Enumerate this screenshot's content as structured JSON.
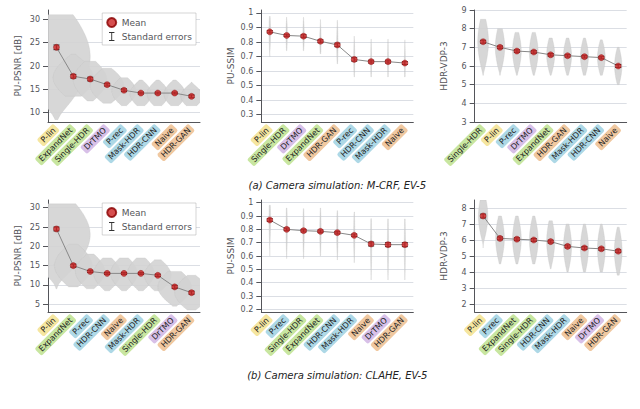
{
  "chart_data": [
    {
      "type": "violin",
      "ylabel": "PU-PSNR [dB]",
      "categories": [
        "P-lin",
        "ExpandNet",
        "Single-HDR",
        "DrTMO",
        "P-rec",
        "Mask-HDR",
        "HDR-CNN",
        "Naive",
        "HDR-GAN"
      ],
      "colors": [
        "#f5e6a0",
        "#c8e6a0",
        "#c8e6a0",
        "#d8c0e8",
        "#add8e6",
        "#add8e6",
        "#add8e6",
        "#f0c8a0",
        "#f0c8a0"
      ],
      "ylim": [
        8,
        32
      ],
      "yticks": [
        10,
        15,
        20,
        25,
        30
      ],
      "grid": true,
      "legend": "upper right",
      "series": [
        {
          "name": "Mean",
          "errors_name": "Standard errors",
          "color": "#cc2222",
          "values": [
            24.0,
            17.8,
            17.2,
            16.0,
            14.8,
            14.2,
            14.2,
            14.2,
            13.5
          ],
          "errors": [
            0.5,
            0.4,
            0.4,
            0.3,
            0.3,
            0.2,
            0.2,
            0.2,
            0.3
          ]
        }
      ],
      "violins": {
        "color": "#d3d3d3",
        "centers": [
          22.0,
          17.5,
          17.0,
          15.8,
          14.6,
          14.0,
          14.0,
          14.0,
          13.5
        ],
        "widths": [
          5.0,
          3.0,
          2.5,
          2.5,
          1.8,
          1.6,
          1.6,
          1.6,
          1.6
        ],
        "mins": [
          8.5,
          13.5,
          12.5,
          12.0,
          11.5,
          11.5,
          11.5,
          11.5,
          11.5
        ],
        "maxs": [
          31.0,
          22.5,
          21.0,
          19.5,
          17.5,
          17.0,
          17.0,
          17.0,
          16.5
        ]
      }
    },
    {
      "type": "violin",
      "ylabel": "PU-SSIM",
      "categories": [
        "P-lin",
        "Single-HDR",
        "DrTMO",
        "ExpandNet",
        "HDR-GAN",
        "P-rec",
        "HDR-CNN",
        "Mask-HDR",
        "Naive"
      ],
      "colors": [
        "#f5e6a0",
        "#c8e6a0",
        "#d8c0e8",
        "#c8e6a0",
        "#f0c8a0",
        "#add8e6",
        "#add8e6",
        "#add8e6",
        "#f0c8a0"
      ],
      "ylim": [
        0.25,
        1.02
      ],
      "yticks": [
        0.3,
        0.4,
        0.5,
        0.6,
        0.7,
        0.8,
        0.9,
        1.0
      ],
      "grid": true,
      "annotations": [
        "(a) Camera simulation: M-CRF, EV-5"
      ],
      "series": [
        {
          "color": "#cc2222",
          "values": [
            0.87,
            0.845,
            0.84,
            0.805,
            0.78,
            0.68,
            0.665,
            0.665,
            0.655
          ],
          "errors": [
            0.008,
            0.008,
            0.01,
            0.01,
            0.012,
            0.012,
            0.01,
            0.01,
            0.01
          ]
        }
      ],
      "violins": {
        "color": "#d3d3d3",
        "centers": [
          0.87,
          0.85,
          0.845,
          0.81,
          0.785,
          0.685,
          0.67,
          0.67,
          0.66
        ],
        "widths": [
          0.12,
          0.1,
          0.1,
          0.1,
          0.1,
          0.08,
          0.07,
          0.07,
          0.07
        ],
        "mins": [
          0.7,
          0.74,
          0.74,
          0.72,
          0.65,
          0.56,
          0.56,
          0.56,
          0.56
        ],
        "maxs": [
          0.975,
          0.97,
          0.97,
          0.955,
          0.95,
          0.84,
          0.82,
          0.82,
          0.815
        ]
      }
    },
    {
      "type": "violin",
      "ylabel": "HDR-VDP-3",
      "categories": [
        "Single-HDR",
        "P-lin",
        "P-rec",
        "DrTMO",
        "ExpandNet",
        "HDR-GAN",
        "Mask-HDR",
        "HDR-CNN",
        "Naive"
      ],
      "colors": [
        "#c8e6a0",
        "#f5e6a0",
        "#add8e6",
        "#d8c0e8",
        "#c8e6a0",
        "#f0c8a0",
        "#add8e6",
        "#add8e6",
        "#f0c8a0"
      ],
      "ylim": [
        3,
        9
      ],
      "yticks": [
        3,
        4,
        5,
        6,
        7,
        8,
        9
      ],
      "grid": true,
      "series": [
        {
          "color": "#cc2222",
          "values": [
            7.3,
            7.0,
            6.8,
            6.75,
            6.6,
            6.55,
            6.5,
            6.45,
            6.0
          ],
          "errors": [
            0.08,
            0.07,
            0.07,
            0.07,
            0.07,
            0.07,
            0.07,
            0.07,
            0.08
          ]
        }
      ],
      "violins": {
        "color": "#d3d3d3",
        "centers": [
          7.3,
          7.0,
          6.8,
          6.75,
          6.6,
          6.55,
          6.5,
          6.45,
          6.0
        ],
        "widths": [
          0.8,
          0.7,
          0.65,
          0.65,
          0.6,
          0.6,
          0.6,
          0.58,
          0.55
        ],
        "mins": [
          5.5,
          5.5,
          5.5,
          5.5,
          5.5,
          5.5,
          5.5,
          5.5,
          5.0
        ],
        "maxs": [
          8.5,
          8.0,
          7.8,
          7.8,
          7.5,
          7.5,
          7.5,
          7.4,
          7.0
        ]
      }
    },
    {
      "type": "violin",
      "ylabel": "PU-PSNR [dB]",
      "categories": [
        "P-lin",
        "ExpandNet",
        "P-rec",
        "HDR-CNN",
        "Naive",
        "Mask-HDR",
        "Single-HDR",
        "DrTMO",
        "HDR-GAN"
      ],
      "colors": [
        "#f5e6a0",
        "#c8e6a0",
        "#add8e6",
        "#add8e6",
        "#f0c8a0",
        "#add8e6",
        "#c8e6a0",
        "#d8c0e8",
        "#f0c8a0"
      ],
      "ylim": [
        3,
        32
      ],
      "yticks": [
        5,
        10,
        15,
        20,
        25,
        30
      ],
      "grid": true,
      "legend": "upper right",
      "series": [
        {
          "name": "Mean",
          "errors_name": "Standard errors",
          "color": "#cc2222",
          "values": [
            24.5,
            15.0,
            13.5,
            13.0,
            13.0,
            13.0,
            12.5,
            9.5,
            8.0
          ],
          "errors": [
            0.5,
            0.4,
            0.3,
            0.25,
            0.25,
            0.25,
            0.3,
            0.4,
            0.4
          ]
        }
      ],
      "violins": {
        "color": "#d3d3d3",
        "centers": [
          23.0,
          15.0,
          13.5,
          13.0,
          13.0,
          13.0,
          12.5,
          9.5,
          8.0
        ],
        "widths": [
          5.0,
          2.8,
          2.2,
          2.0,
          2.0,
          2.0,
          2.0,
          2.5,
          2.5
        ],
        "mins": [
          9.0,
          9.5,
          9.0,
          8.5,
          8.5,
          8.5,
          8.5,
          4.5,
          3.5
        ],
        "maxs": [
          31.0,
          20.5,
          18.0,
          17.0,
          17.0,
          17.0,
          16.5,
          13.5,
          12.5
        ]
      }
    },
    {
      "type": "violin",
      "ylabel": "PU-SSIM",
      "categories": [
        "P-lin",
        "P-rec",
        "Single-HDR",
        "ExpandNet",
        "HDR-CNN",
        "Mask-HDR",
        "Naive",
        "DrTMO",
        "HDR-GAN"
      ],
      "colors": [
        "#f5e6a0",
        "#add8e6",
        "#c8e6a0",
        "#c8e6a0",
        "#add8e6",
        "#add8e6",
        "#f0c8a0",
        "#d8c0e8",
        "#f0c8a0"
      ],
      "ylim": [
        0.18,
        1.02
      ],
      "yticks": [
        0.2,
        0.3,
        0.4,
        0.5,
        0.6,
        0.7,
        0.8,
        0.9,
        1.0
      ],
      "grid": true,
      "annotations": [
        "(b) Camera simulation: CLAHE, EV-5"
      ],
      "series": [
        {
          "color": "#cc2222",
          "values": [
            0.87,
            0.8,
            0.79,
            0.785,
            0.775,
            0.755,
            0.69,
            0.685,
            0.685
          ],
          "errors": [
            0.01,
            0.01,
            0.01,
            0.01,
            0.01,
            0.01,
            0.015,
            0.015,
            0.015
          ]
        }
      ],
      "violins": {
        "color": "#d3d3d3",
        "centers": [
          0.87,
          0.8,
          0.79,
          0.785,
          0.775,
          0.755,
          0.69,
          0.685,
          0.685
        ],
        "widths": [
          0.12,
          0.1,
          0.1,
          0.1,
          0.1,
          0.09,
          0.09,
          0.09,
          0.09
        ],
        "mins": [
          0.6,
          0.58,
          0.58,
          0.6,
          0.57,
          0.55,
          0.42,
          0.42,
          0.42
        ],
        "maxs": [
          0.98,
          0.96,
          0.955,
          0.96,
          0.94,
          0.93,
          0.88,
          0.878,
          0.878
        ]
      }
    },
    {
      "type": "violin",
      "ylabel": "HDR-VDP-3",
      "categories": [
        "P-lin",
        "P-rec",
        "ExpandNet",
        "Single-HDR",
        "HDR-CNN",
        "Mask-HDR",
        "Naive",
        "DrTMO",
        "HDR-GAN"
      ],
      "colors": [
        "#f5e6a0",
        "#add8e6",
        "#c8e6a0",
        "#c8e6a0",
        "#add8e6",
        "#add8e6",
        "#f0c8a0",
        "#d8c0e8",
        "#f0c8a0"
      ],
      "ylim": [
        1.5,
        8.5
      ],
      "yticks": [
        2,
        3,
        4,
        5,
        6,
        7,
        8
      ],
      "grid": true,
      "series": [
        {
          "color": "#cc2222",
          "values": [
            7.5,
            6.1,
            6.05,
            6.0,
            5.9,
            5.6,
            5.5,
            5.45,
            5.3
          ],
          "errors": [
            0.12,
            0.09,
            0.09,
            0.09,
            0.09,
            0.09,
            0.09,
            0.09,
            0.09
          ]
        }
      ],
      "violins": {
        "color": "#d3d3d3",
        "centers": [
          7.5,
          6.1,
          6.05,
          6.0,
          5.9,
          5.6,
          5.5,
          5.45,
          5.3
        ],
        "widths": [
          0.7,
          0.65,
          0.65,
          0.65,
          0.6,
          0.6,
          0.6,
          0.58,
          0.58
        ],
        "mins": [
          5.5,
          4.5,
          4.5,
          4.5,
          4.2,
          4.0,
          4.0,
          4.0,
          3.8
        ],
        "maxs": [
          8.5,
          7.5,
          7.5,
          7.5,
          7.2,
          7.0,
          7.0,
          7.0,
          6.8
        ]
      }
    }
  ]
}
